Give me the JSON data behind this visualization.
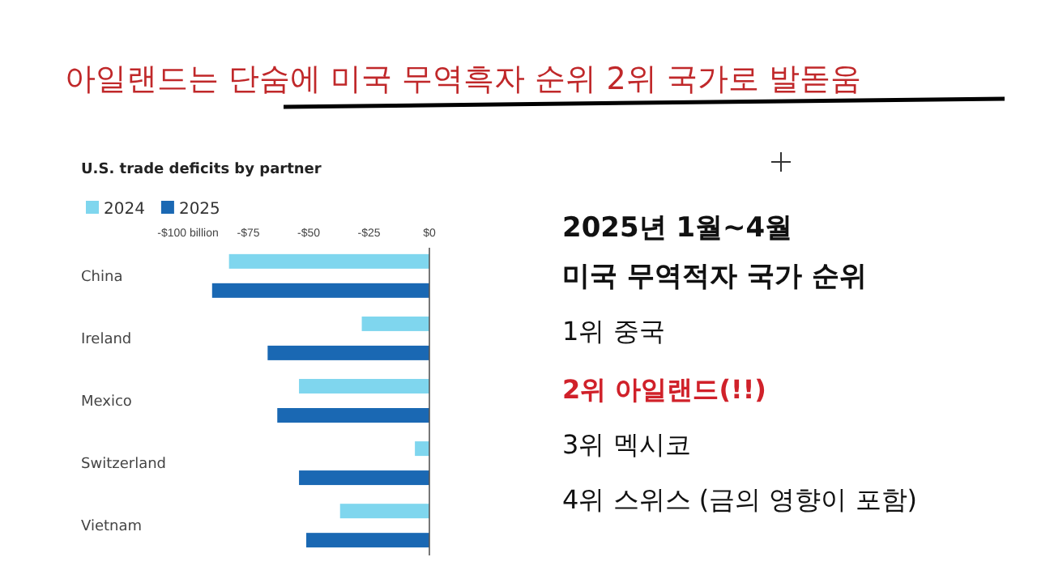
{
  "chart_data": {
    "type": "bar",
    "orientation": "horizontal",
    "title": "아일랜드는 단숨에 미국 무역흑자 순위 2위 국가로 발돋움",
    "subtitle": "U.S. trade deficits by partner",
    "categories": [
      "China",
      "Ireland",
      "Mexico",
      "Switzerland",
      "Vietnam"
    ],
    "series": [
      {
        "name": "2024",
        "color": "#7fd6ee",
        "values": [
          -83,
          -28,
          -54,
          -6,
          -37
        ]
      },
      {
        "name": "2025",
        "color": "#1a68b3",
        "values": [
          -90,
          -67,
          -63,
          -54,
          -51
        ]
      }
    ],
    "xlim": [
      -100,
      0
    ],
    "xticks": [
      {
        "value": -100,
        "label": "-$100 billion"
      },
      {
        "value": -75,
        "label": "-$75"
      },
      {
        "value": -50,
        "label": "-$50"
      },
      {
        "value": -25,
        "label": "-$25"
      },
      {
        "value": 0,
        "label": "$0"
      }
    ],
    "grid": false,
    "legend": "top left",
    "annotations": [
      "2025년 1월~4월",
      "미국 무역적자 국가 순위",
      "1위 중국",
      "2위 아일랜드(!!)",
      "3위 멕시코",
      "4위 스위스 (금의 영향이 포함)"
    ]
  }
}
